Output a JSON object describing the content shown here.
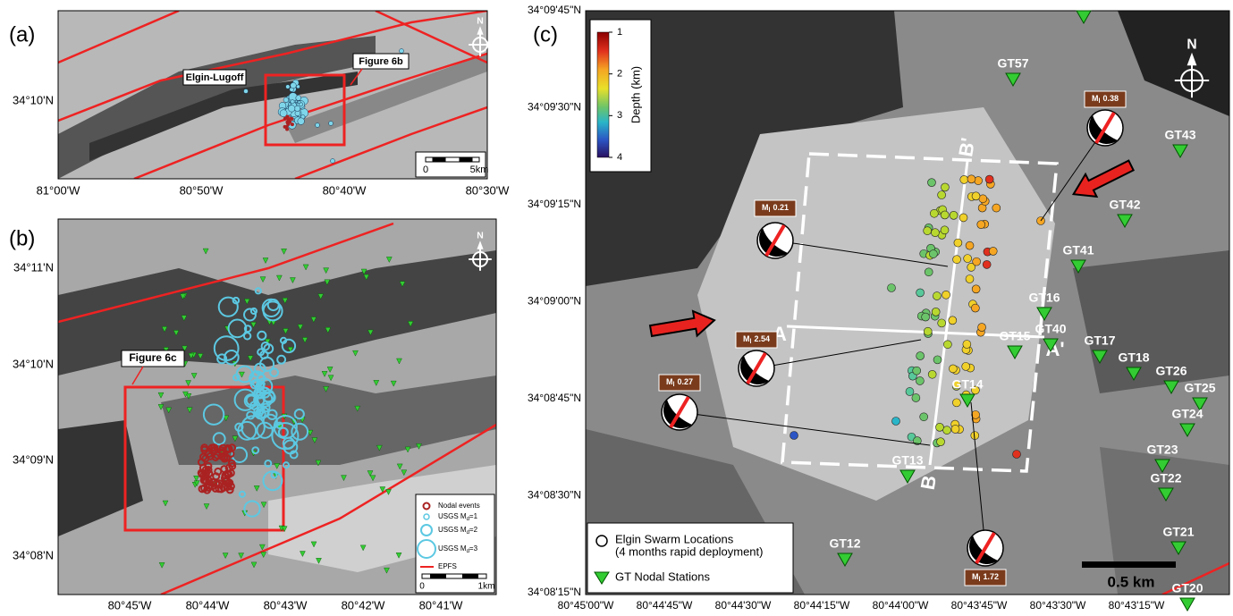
{
  "panel_a": {
    "label": "(a)",
    "place": "Elgin-Lugoff",
    "inset": "Figure 6b",
    "north": "N",
    "yticks": [
      "34°10'N"
    ],
    "xticks": [
      "81°00'W",
      "80°50'W",
      "80°40'W",
      "80°30'W"
    ],
    "scale": [
      "0",
      "5km"
    ]
  },
  "panel_b": {
    "label": "(b)",
    "inset": "Figure 6c",
    "north": "N",
    "yticks": [
      "34°11'N",
      "34°10'N",
      "34°09'N",
      "34°08'N"
    ],
    "xticks": [
      "80°45'W",
      "80°44'W",
      "80°43'W",
      "80°42'W",
      "80°41'W"
    ],
    "legend": [
      {
        "text": "Nodal events"
      },
      {
        "text": "USGS M",
        "sub": "d",
        "suffix": "=1"
      },
      {
        "text": "USGS M",
        "sub": "d",
        "suffix": "=2"
      },
      {
        "text": "USGS M",
        "sub": "d",
        "suffix": "=3"
      },
      {
        "text": "EPFS"
      }
    ],
    "scale": [
      "0",
      "1km"
    ]
  },
  "panel_c": {
    "label": "(c)",
    "north": "N",
    "colorbar": {
      "title": "Depth (km)",
      "ticks": [
        "1",
        "2",
        "3",
        "4"
      ]
    },
    "yticks": [
      "34°09'45\"N",
      "34°09'30\"N",
      "34°09'15\"N",
      "34°09'00\"N",
      "34°08'45\"N",
      "34°08'30\"N",
      "34°08'15\"N"
    ],
    "xticks": [
      "80°45'00\"W",
      "80°44'45\"W",
      "80°44'30\"W",
      "80°44'15\"W",
      "80°44'00\"W",
      "80°43'45\"W",
      "80°43'30\"W",
      "80°43'15\"W"
    ],
    "stations": [
      "GT57",
      "GT43",
      "GT42",
      "GT41",
      "GT16",
      "GT40",
      "GT15",
      "GT17",
      "GT18",
      "GT26",
      "GT25",
      "GT24",
      "GT23",
      "GT22",
      "GT21",
      "GT20",
      "GT12",
      "GT13",
      "GT14"
    ],
    "mechanisms": [
      {
        "m": "M",
        "sub": "l",
        "value": "0.38"
      },
      {
        "m": "M",
        "sub": "l",
        "value": "0.21"
      },
      {
        "m": "M",
        "sub": "l",
        "value": "2.54"
      },
      {
        "m": "M",
        "sub": "l",
        "value": "0.27"
      },
      {
        "m": "M",
        "sub": "l",
        "value": "1.72"
      }
    ],
    "sections": [
      "A",
      "A'",
      "B",
      "B'"
    ],
    "legend": [
      "Elgin Swarm Locations",
      "(4 months rapid deployment)",
      "GT Nodal Stations"
    ],
    "scale": "0.5 km"
  }
}
